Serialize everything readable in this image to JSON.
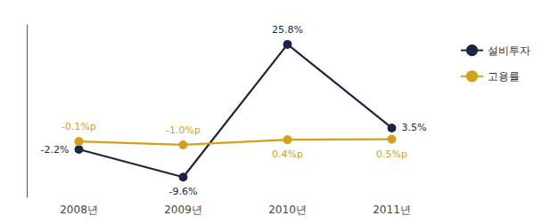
{
  "chart_data": {
    "type": "line",
    "categories": [
      "2008년",
      "2009년",
      "2010년",
      "2011년"
    ],
    "series": [
      {
        "name": "설비투자",
        "color": "#1a2744",
        "marker": "circle",
        "values": [
          -2.2,
          -9.6,
          25.8,
          3.5
        ],
        "value_labels": [
          "-2.2%",
          "-9.6%",
          "25.8%",
          "3.5%"
        ]
      },
      {
        "name": "고용률",
        "color": "#d4a017",
        "marker": "circle",
        "values": [
          -0.1,
          -1.0,
          0.4,
          0.5
        ],
        "value_labels": [
          "-0.1%p",
          "-1.0%p",
          "0.4%p",
          "0.5%p"
        ]
      }
    ],
    "ylim": [
      -15,
      31
    ],
    "grid": false,
    "legend": "upper right",
    "data_labels": true,
    "tick_labels": "x"
  }
}
